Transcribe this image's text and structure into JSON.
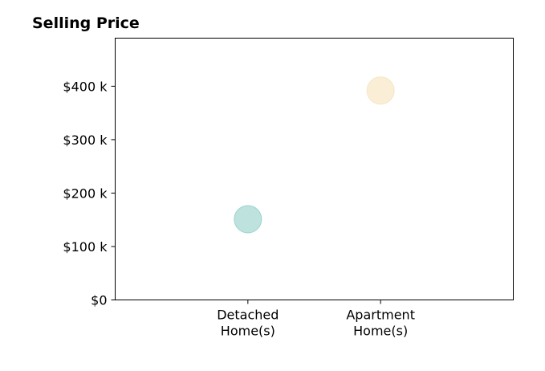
{
  "chart_data": {
    "type": "scatter",
    "title": "Selling Price",
    "xlabel": "",
    "ylabel": "",
    "categories": [
      [
        "Detached",
        "Home(s)"
      ],
      [
        "Apartment",
        "Home(s)"
      ]
    ],
    "y_ticks": [
      {
        "value": 0,
        "label": "$0"
      },
      {
        "value": 100000,
        "label": "$100 k"
      },
      {
        "value": 200000,
        "label": "$200 k"
      },
      {
        "value": 300000,
        "label": "$300 k"
      },
      {
        "value": 400000,
        "label": "$400 k"
      }
    ],
    "ylim": [
      0,
      490000
    ],
    "grid": false,
    "points": [
      {
        "category": 0,
        "value": 151000,
        "color": "#7ec8c0"
      },
      {
        "category": 1,
        "value": 392000,
        "color": "#f5deb0"
      }
    ]
  }
}
